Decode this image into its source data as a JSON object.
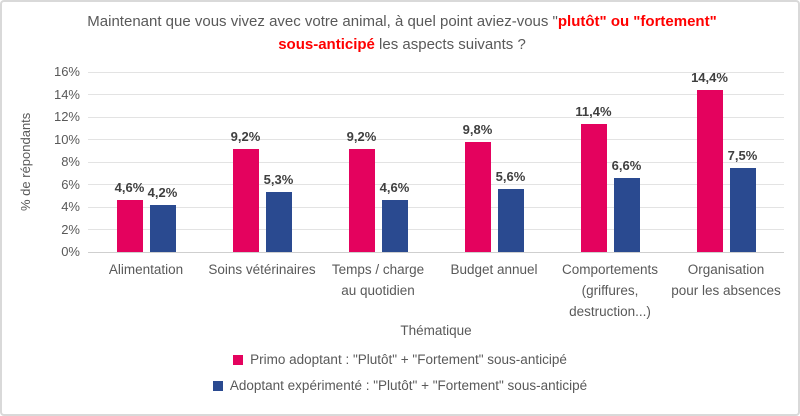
{
  "title": {
    "segments": [
      {
        "text": "Maintenant que vous vivez avec votre animal, à quel point aviez-vous \"",
        "color": "#595959",
        "bold": false
      },
      {
        "text": "plutôt\" ou \"fortement\" sous-anticipé",
        "color": "#ff0000",
        "bold": true
      },
      {
        "text": " les aspects suivants ?",
        "color": "#595959",
        "bold": false
      }
    ]
  },
  "colors": {
    "accent_red": "#ff0000",
    "text_gray": "#595959",
    "value_label": "#3f3f3f",
    "gridline": "#e3e3e3",
    "axis_line": "#cfcfcf",
    "frame_border": "#d9d9d9",
    "series_primo": "#e4025e",
    "series_experimente": "#2a4a90"
  },
  "chart_data": {
    "type": "bar",
    "title": "Maintenant que vous vivez avec votre animal, à quel point aviez-vous \"plutôt\" ou \"fortement\" sous-anticipé les aspects suivants ?",
    "xlabel": "Thématique",
    "ylabel": "% de répondants",
    "ylim": [
      0,
      16
    ],
    "ytick_step": 2,
    "yticks": [
      "0%",
      "2%",
      "4%",
      "6%",
      "8%",
      "10%",
      "12%",
      "14%",
      "16%"
    ],
    "grid": true,
    "legend_position": "bottom",
    "categories": [
      "Alimentation",
      "Soins vétérinaires",
      "Temps / charge\nau quotidien",
      "Budget annuel",
      "Comportements\n(griffures,\ndestruction...)",
      "Organisation\npour les absences"
    ],
    "series": [
      {
        "name": "Primo adoptant : \"Plutôt\" + \"Fortement\" sous-anticipé",
        "color": "#e4025e",
        "values": [
          4.6,
          9.2,
          9.2,
          9.8,
          11.4,
          14.4
        ],
        "labels": [
          "4,6%",
          "9,2%",
          "9,2%",
          "9,8%",
          "11,4%",
          "14,4%"
        ]
      },
      {
        "name": "Adoptant expérimenté : \"Plutôt\" + \"Fortement\" sous-anticipé",
        "color": "#2a4a90",
        "values": [
          4.2,
          5.3,
          4.6,
          5.6,
          6.6,
          7.5
        ],
        "labels": [
          "4,2%",
          "5,3%",
          "4,6%",
          "5,6%",
          "6,6%",
          "7,5%"
        ]
      }
    ]
  }
}
